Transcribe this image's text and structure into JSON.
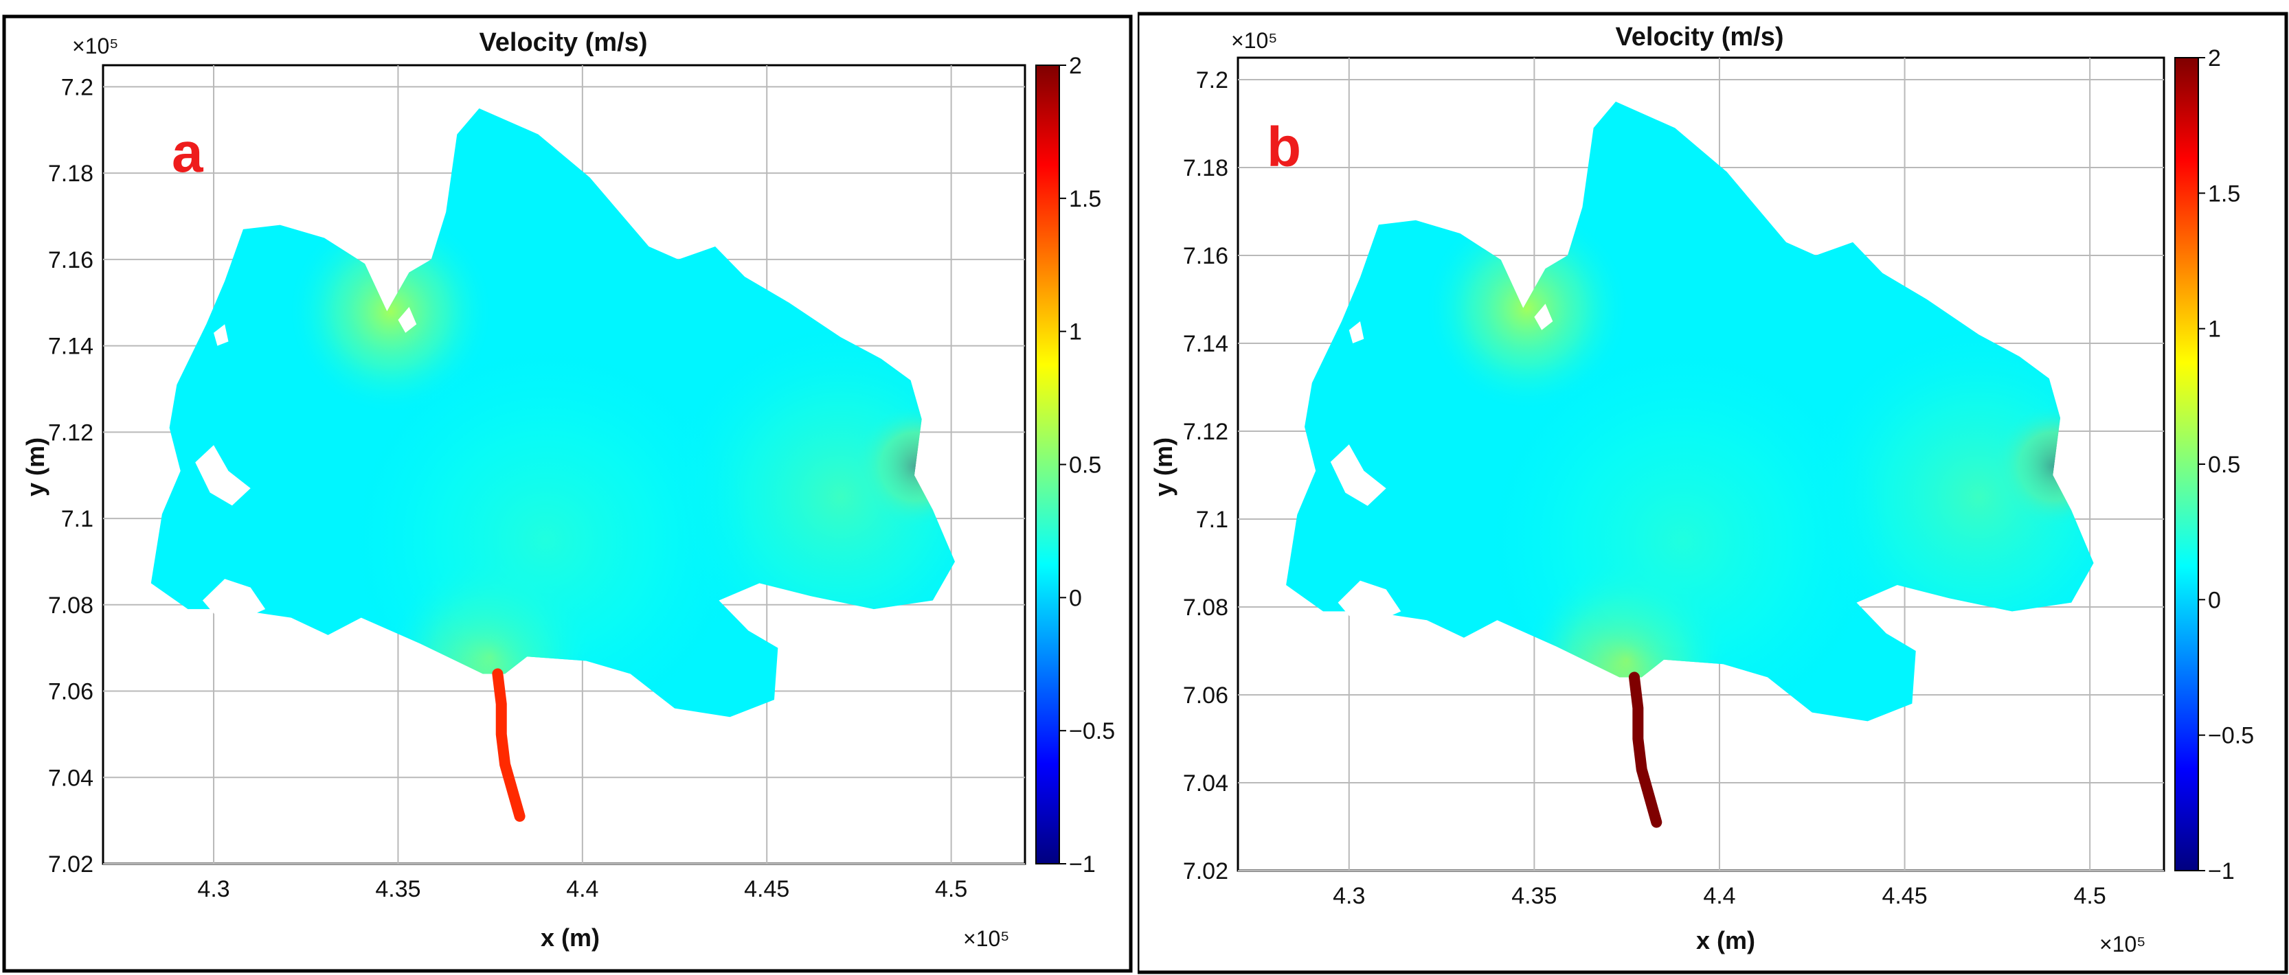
{
  "colors": {
    "water": "#1fc4ea",
    "land": "#ffffff",
    "label_red": "#ee1c1c",
    "grid": "#b9b9b9",
    "frame": "#000000",
    "colormap": [
      "#00007f",
      "#0000ff",
      "#007fff",
      "#00ffff",
      "#7fff7f",
      "#ffff00",
      "#ff7f00",
      "#ff0000",
      "#7f0000"
    ]
  },
  "chart_data": [
    {
      "type": "heatmap",
      "panel_label": "a",
      "title": "Velocity (m/s)",
      "xlabel": "x (m)",
      "ylabel": "y (m)",
      "x_exponent": "×10⁵",
      "y_exponent": "×10⁵",
      "xlim": [
        4.27,
        4.52
      ],
      "ylim": [
        7.02,
        7.205
      ],
      "xticks": [
        4.3,
        4.35,
        4.4,
        4.45,
        4.5
      ],
      "xtick_labels": [
        "4.3",
        "4.35",
        "4.4",
        "4.45",
        "4.5"
      ],
      "yticks": [
        7.02,
        7.04,
        7.06,
        7.08,
        7.1,
        7.12,
        7.14,
        7.16,
        7.18,
        7.2
      ],
      "ytick_labels": [
        "7.02",
        "7.04",
        "7.06",
        "7.08",
        "7.1",
        "7.12",
        "7.14",
        "7.16",
        "7.18",
        "7.2"
      ],
      "grid": true,
      "colorbar": {
        "range": [
          -1,
          2
        ],
        "ticks": [
          -1,
          -0.5,
          0,
          0.5,
          1,
          1.5,
          2
        ],
        "tick_labels": [
          "−1",
          "−0.5",
          "0",
          "0.5",
          "1",
          "1.5",
          "2"
        ]
      },
      "background_velocity": 0.1,
      "hotspots": [
        {
          "x": 4.375,
          "y": 7.068,
          "velocity": 0.7
        },
        {
          "x": 4.49,
          "y": 7.112,
          "velocity": 1.9
        },
        {
          "x": 4.348,
          "y": 7.148,
          "velocity": 0.6
        }
      ],
      "channel_velocity": 1.5
    },
    {
      "type": "heatmap",
      "panel_label": "b",
      "title": "Velocity (m/s)",
      "xlabel": "x (m)",
      "ylabel": "y (m)",
      "x_exponent": "×10⁵",
      "y_exponent": "×10⁵",
      "xlim": [
        4.27,
        4.52
      ],
      "ylim": [
        7.02,
        7.205
      ],
      "xticks": [
        4.3,
        4.35,
        4.4,
        4.45,
        4.5
      ],
      "xtick_labels": [
        "4.3",
        "4.35",
        "4.4",
        "4.45",
        "4.5"
      ],
      "yticks": [
        7.02,
        7.04,
        7.06,
        7.08,
        7.1,
        7.12,
        7.14,
        7.16,
        7.18,
        7.2
      ],
      "ytick_labels": [
        "7.02",
        "7.04",
        "7.06",
        "7.08",
        "7.1",
        "7.12",
        "7.14",
        "7.16",
        "7.18",
        "7.2"
      ],
      "grid": true,
      "colorbar": {
        "range": [
          -1,
          2
        ],
        "ticks": [
          -1,
          -0.5,
          0,
          0.5,
          1,
          1.5,
          2
        ],
        "tick_labels": [
          "−1",
          "−0.5",
          "0",
          "0.5",
          "1",
          "1.5",
          "2"
        ]
      },
      "background_velocity": 0.1,
      "hotspots": [
        {
          "x": 4.375,
          "y": 7.068,
          "velocity": 0.9
        },
        {
          "x": 4.49,
          "y": 7.112,
          "velocity": 2.0
        },
        {
          "x": 4.348,
          "y": 7.148,
          "velocity": 0.6
        }
      ],
      "channel_velocity": 2.0
    }
  ]
}
